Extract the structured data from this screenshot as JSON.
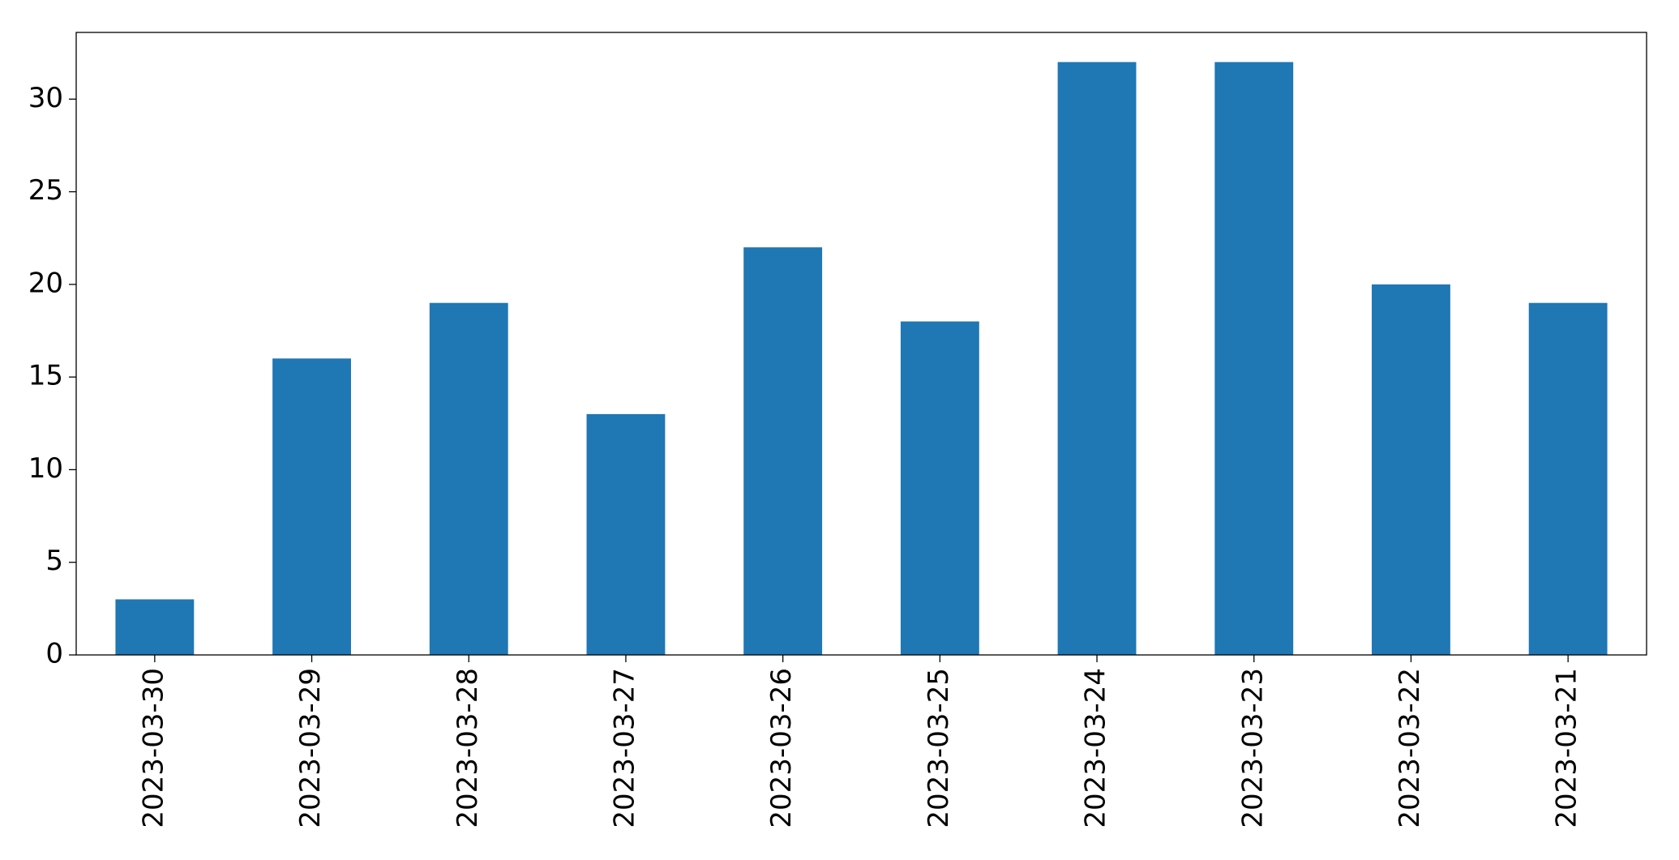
{
  "chart_data": {
    "type": "bar",
    "categories": [
      "2023-03-30",
      "2023-03-29",
      "2023-03-28",
      "2023-03-27",
      "2023-03-26",
      "2023-03-25",
      "2023-03-24",
      "2023-03-23",
      "2023-03-22",
      "2023-03-21"
    ],
    "values": [
      3,
      16,
      19,
      13,
      22,
      18,
      32,
      32,
      20,
      19
    ],
    "color": "#1f77b4",
    "ylim": [
      0,
      33.6
    ],
    "yticks": [
      0,
      5,
      10,
      15,
      20,
      25,
      30
    ],
    "grid": false
  }
}
